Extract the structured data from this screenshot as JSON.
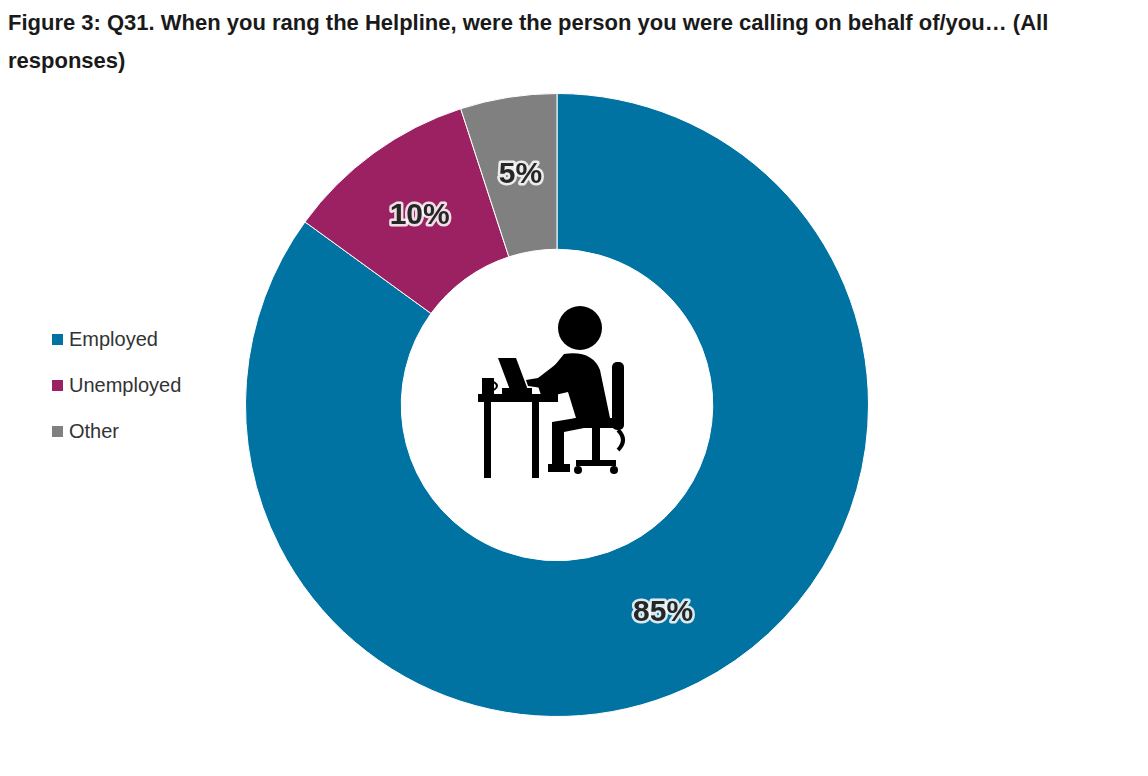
{
  "chart_data": {
    "type": "doughnut",
    "title": "Figure 3: Q31. When you rang the Helpline, were the person you were calling on behalf of/you… (All responses)",
    "categories": [
      "Employed",
      "Unemployed",
      "Other"
    ],
    "values": [
      85,
      10,
      5
    ],
    "value_labels": [
      "85%",
      "10%",
      "5%"
    ],
    "colors": [
      "#0073a2",
      "#9b2162",
      "#808080"
    ],
    "legend": "left",
    "data_labels": true
  }
}
